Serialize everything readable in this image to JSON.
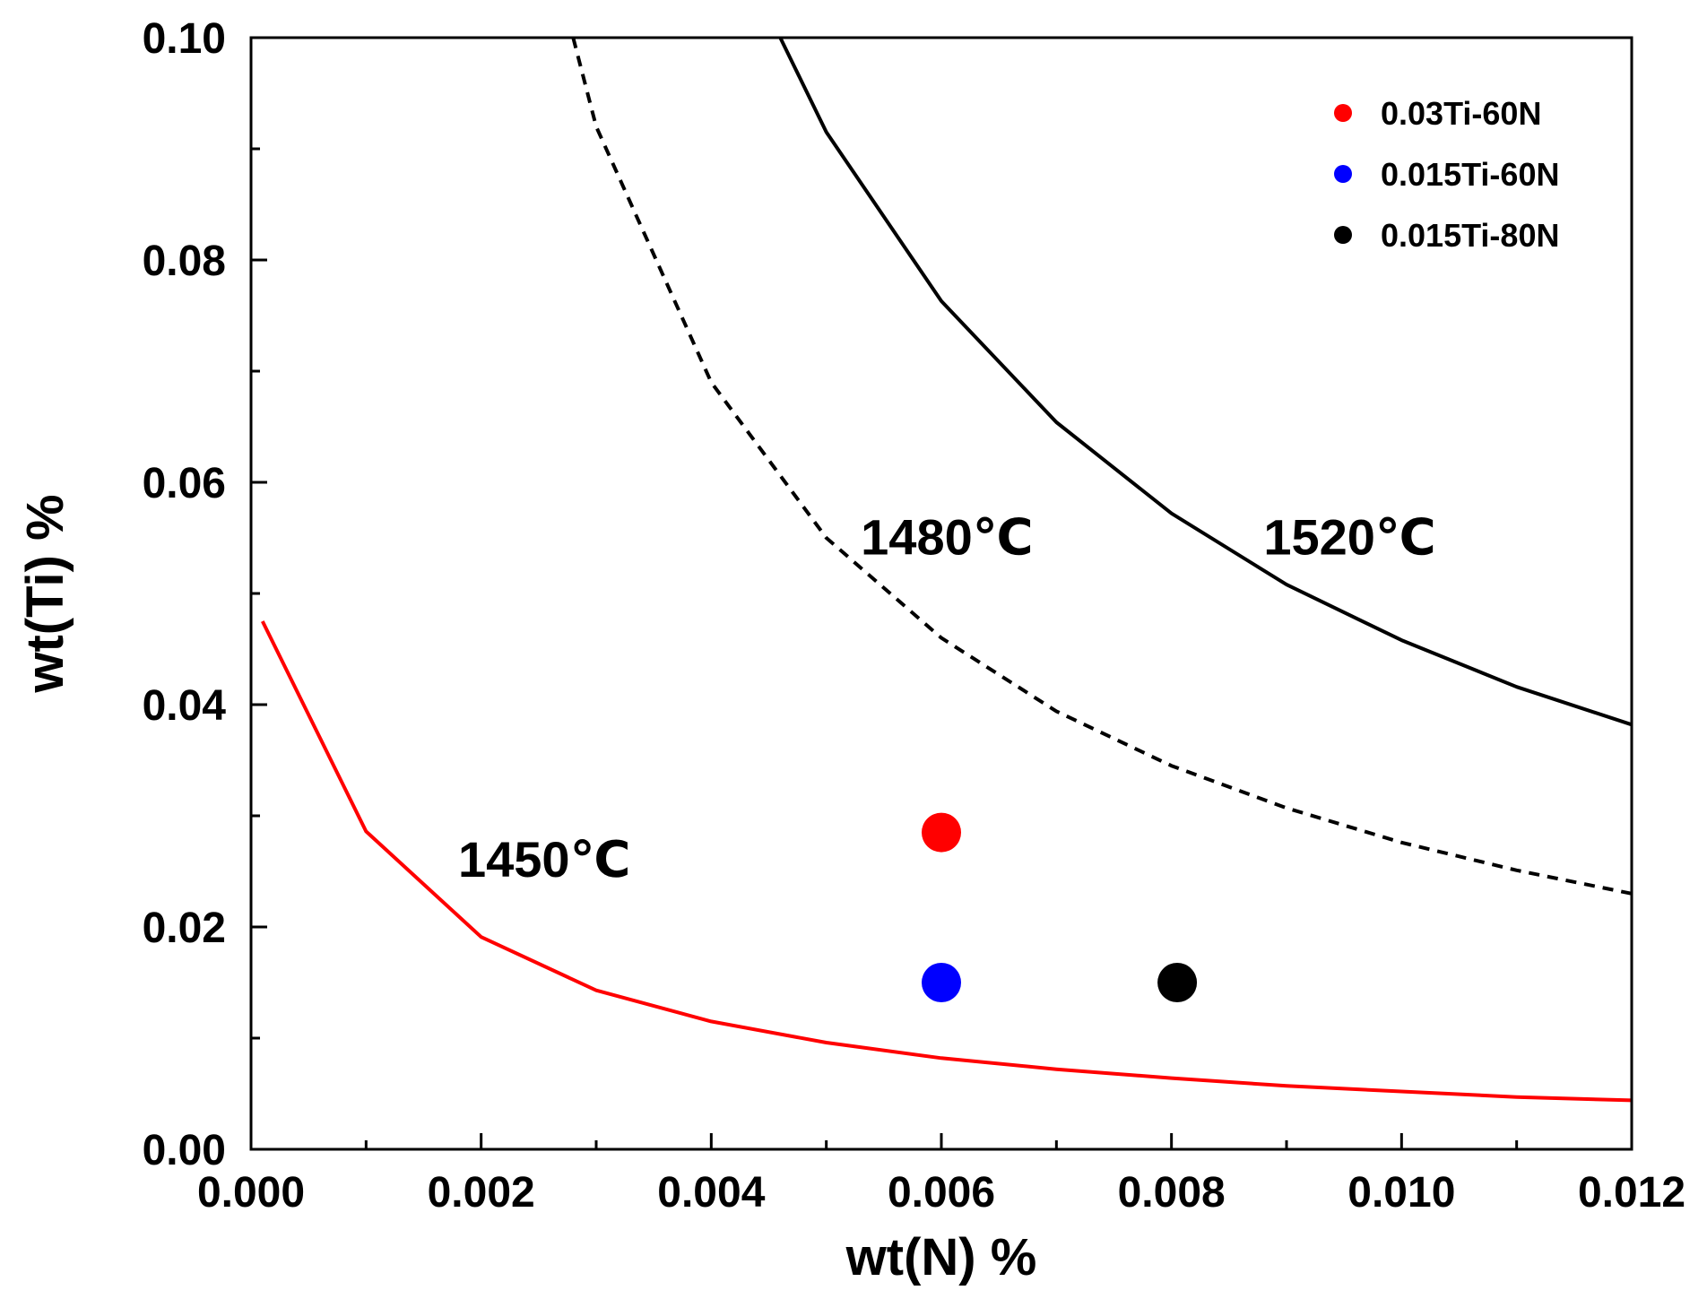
{
  "chart_data": {
    "type": "line",
    "title": "",
    "xlabel": "wt(N) %",
    "ylabel": "wt(Ti) %",
    "xlim": [
      0.0,
      0.012
    ],
    "ylim": [
      0.0,
      0.1
    ],
    "x_ticks": [
      "0.000",
      "0.002",
      "0.004",
      "0.006",
      "0.008",
      "0.010",
      "0.012"
    ],
    "x_tick_values": [
      0.0,
      0.002,
      0.004,
      0.006,
      0.008,
      0.01,
      0.012
    ],
    "y_ticks": [
      "0.00",
      "0.02",
      "0.04",
      "0.06",
      "0.08",
      "0.10"
    ],
    "y_tick_values": [
      0.0,
      0.02,
      0.04,
      0.06,
      0.08,
      0.1
    ],
    "grid": false,
    "series": [
      {
        "name": "1450℃",
        "label": "1450℃",
        "label_at": [
          0.0018,
          0.0245
        ],
        "color": "#ff0000",
        "dash": "solid",
        "x": [
          0.0001,
          0.001,
          0.002,
          0.003,
          0.004,
          0.005,
          0.006,
          0.007,
          0.008,
          0.009,
          0.01,
          0.011,
          0.012
        ],
        "y": [
          0.0475,
          0.0286,
          0.0191,
          0.0143,
          0.0115,
          0.0096,
          0.0082,
          0.0072,
          0.0064,
          0.0057,
          0.0052,
          0.0047,
          0.0044
        ]
      },
      {
        "name": "1480℃",
        "label": "1480℃",
        "label_at": [
          0.0053,
          0.0535
        ],
        "color": "#000000",
        "dash": "dashed",
        "x": [
          0.0028,
          0.003,
          0.004,
          0.005,
          0.006,
          0.007,
          0.008,
          0.009,
          0.01,
          0.011,
          0.012
        ],
        "y": [
          0.1,
          0.092,
          0.069,
          0.055,
          0.046,
          0.0394,
          0.0345,
          0.0307,
          0.0276,
          0.0251,
          0.023
        ]
      },
      {
        "name": "1520℃",
        "label": "1520℃",
        "label_at": [
          0.0088,
          0.0535
        ],
        "color": "#000000",
        "dash": "solid",
        "x": [
          0.0046,
          0.005,
          0.006,
          0.007,
          0.008,
          0.009,
          0.01,
          0.011,
          0.012
        ],
        "y": [
          0.1,
          0.0915,
          0.0763,
          0.0654,
          0.0572,
          0.0508,
          0.0458,
          0.0416,
          0.0382
        ]
      }
    ],
    "points": [
      {
        "name": "0.03Ti-60N",
        "x": 0.006,
        "y": 0.0285,
        "color": "#ff0000"
      },
      {
        "name": "0.015Ti-60N",
        "x": 0.006,
        "y": 0.015,
        "color": "#0000ff"
      },
      {
        "name": "0.015Ti-80N",
        "x": 0.00805,
        "y": 0.015,
        "color": "#000000"
      }
    ],
    "legend": {
      "position": "top-right",
      "entries": [
        {
          "label": "0.03Ti-60N",
          "color": "#ff0000"
        },
        {
          "label": "0.015Ti-60N",
          "color": "#0000ff"
        },
        {
          "label": "0.015Ti-80N",
          "color": "#000000"
        }
      ]
    }
  }
}
